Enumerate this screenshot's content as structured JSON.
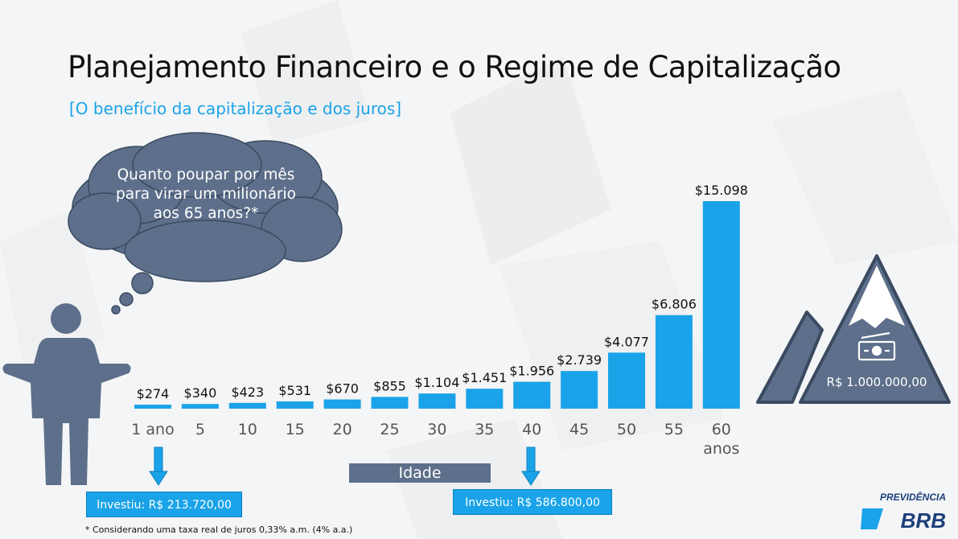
{
  "title": "Planejamento Financeiro e o Regime de Capitalização",
  "subtitle": "[O benefício da capitalização e dos juros]",
  "thought": "Quanto poupar por mês para virar um milionário aos 65 anos?*",
  "idade_label": "Idade",
  "invest_left": "Investiu: R$ 213.720,00",
  "invest_right": "Investiu: R$ 586.800,00",
  "footnote": "* Considerando uma taxa real de juros 0,33% a.m. (4% a.a.)",
  "goal_label": "R$ 1.000.000,00",
  "logo": {
    "top": "PREVIDÊNCIA",
    "bottom": "BRB"
  },
  "colors": {
    "bar": "#1aa3e8",
    "cloud": "#5d6f8a",
    "person": "#5d6f8a",
    "mountain": "#5d6f8a"
  },
  "icons": [
    "thought-cloud-icon",
    "person-icon",
    "mountain-icon",
    "money-icon",
    "arrow-down-icon"
  ],
  "chart_data": {
    "type": "bar",
    "categories": [
      "1 ano",
      "5",
      "10",
      "15",
      "20",
      "25",
      "30",
      "35",
      "40",
      "45",
      "50",
      "55",
      "60\nanos"
    ],
    "values": [
      274,
      340,
      423,
      531,
      670,
      855,
      1104,
      1451,
      1956,
      2739,
      4077,
      6806,
      15098
    ],
    "data_labels": [
      "$274",
      "$340",
      "$423",
      "$531",
      "$670",
      "$855",
      "$1.104",
      "$1.451",
      "$1.956",
      "$2.739",
      "$4.077",
      "$6.806",
      "$15.098"
    ],
    "xlabel": "Idade",
    "ylabel": "",
    "ylim": [
      0,
      15098
    ]
  }
}
